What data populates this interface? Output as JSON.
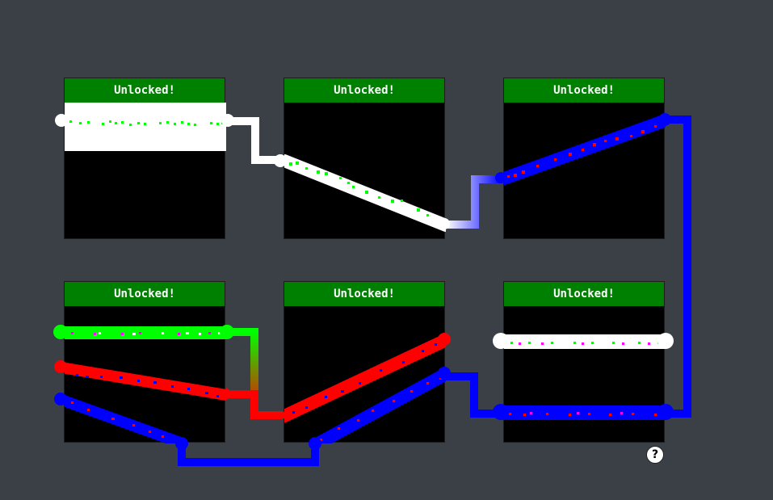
{
  "colors": {
    "background": "#3b4047",
    "header": "#008000",
    "white": "#ffffff",
    "green": "#00ff00",
    "red": "#ff0000",
    "blue": "#0000ff",
    "magenta": "#ff00ff"
  },
  "puzzles": [
    {
      "id": "p1",
      "status": "Unlocked!"
    },
    {
      "id": "p2",
      "status": "Unlocked!"
    },
    {
      "id": "p3",
      "status": "Unlocked!"
    },
    {
      "id": "p4",
      "status": "Unlocked!"
    },
    {
      "id": "p5",
      "status": "Unlocked!"
    },
    {
      "id": "p6",
      "status": "Unlocked!"
    }
  ],
  "help": {
    "label": "?",
    "icon": "question-icon"
  }
}
